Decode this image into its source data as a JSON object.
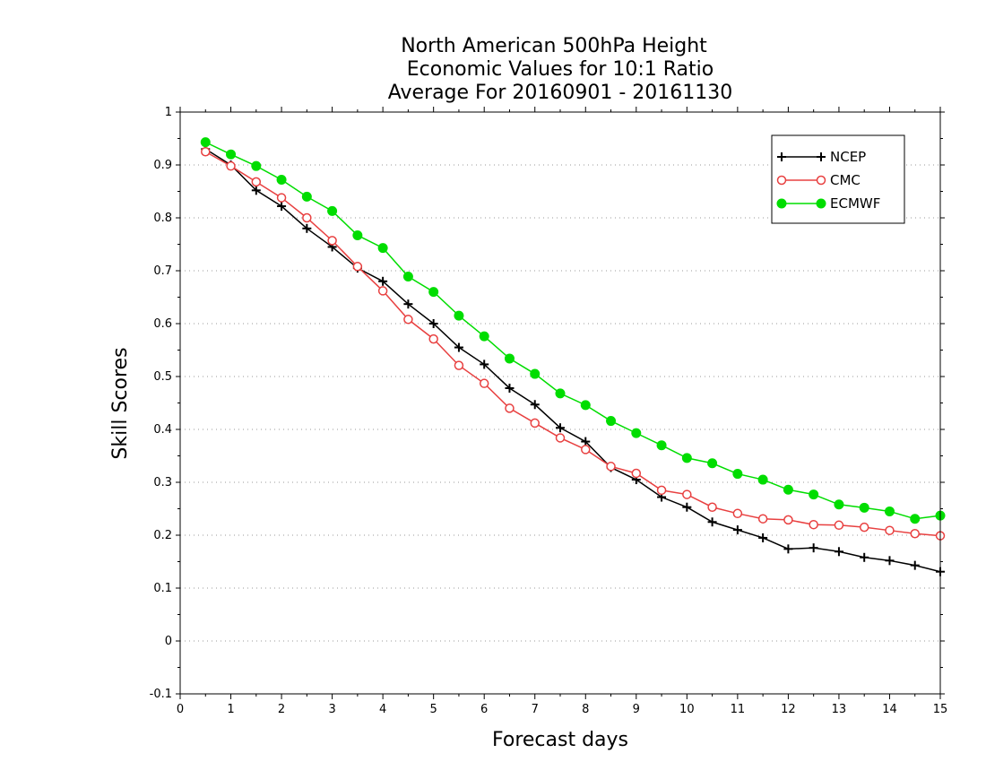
{
  "chart_data": {
    "type": "line",
    "title": [
      "North American 500hPa Height",
      "Economic Values for 10:1 Ratio",
      "Average For 20160901 - 20161130"
    ],
    "xlabel": "Forecast days",
    "ylabel": "Skill Scores",
    "xlim": [
      0,
      15
    ],
    "ylim": [
      -0.1,
      1
    ],
    "xticks": [
      0,
      1,
      2,
      3,
      4,
      5,
      6,
      7,
      8,
      9,
      10,
      11,
      12,
      13,
      14,
      15
    ],
    "yticks": [
      -0.1,
      0,
      0.1,
      0.2,
      0.3,
      0.4,
      0.5,
      0.6,
      0.7,
      0.8,
      0.9,
      1
    ],
    "ytick_labels": [
      "-0.1",
      "0",
      "0.1",
      "0.2",
      "0.3",
      "0.4",
      "0.5",
      "0.6",
      "0.7",
      "0.8",
      "0.9",
      "1"
    ],
    "grid": "horizontal dotted",
    "legend_position": "top-right",
    "x": [
      0.5,
      1,
      1.5,
      2,
      2.5,
      3,
      3.5,
      4,
      4.5,
      5,
      5.5,
      6,
      6.5,
      7,
      7.5,
      8,
      8.5,
      9,
      9.5,
      10,
      10.5,
      11,
      11.5,
      12,
      12.5,
      13,
      13.5,
      14,
      14.5,
      15
    ],
    "series": [
      {
        "name": "NCEP",
        "color": "#000000",
        "marker": "plus",
        "values": [
          0.93,
          0.9,
          0.852,
          0.822,
          0.78,
          0.745,
          0.705,
          0.68,
          0.637,
          0.6,
          0.555,
          0.523,
          0.478,
          0.447,
          0.403,
          0.377,
          0.328,
          0.305,
          0.272,
          0.253,
          0.225,
          0.21,
          0.195,
          0.174,
          0.176,
          0.169,
          0.158,
          0.152,
          0.143,
          0.131
        ]
      },
      {
        "name": "CMC",
        "color": "#e84040",
        "marker": "open-circle",
        "values": [
          0.925,
          0.898,
          0.868,
          0.838,
          0.8,
          0.757,
          0.708,
          0.662,
          0.608,
          0.571,
          0.521,
          0.487,
          0.44,
          0.412,
          0.384,
          0.362,
          0.33,
          0.317,
          0.285,
          0.277,
          0.253,
          0.241,
          0.231,
          0.229,
          0.22,
          0.219,
          0.215,
          0.209,
          0.203,
          0.199
        ]
      },
      {
        "name": "ECMWF",
        "color": "#00dd00",
        "marker": "filled-circle",
        "values": [
          0.943,
          0.92,
          0.898,
          0.872,
          0.84,
          0.813,
          0.767,
          0.743,
          0.689,
          0.66,
          0.615,
          0.576,
          0.534,
          0.505,
          0.468,
          0.446,
          0.416,
          0.393,
          0.37,
          0.346,
          0.336,
          0.316,
          0.305,
          0.286,
          0.277,
          0.258,
          0.252,
          0.245,
          0.231,
          0.237
        ]
      }
    ]
  }
}
